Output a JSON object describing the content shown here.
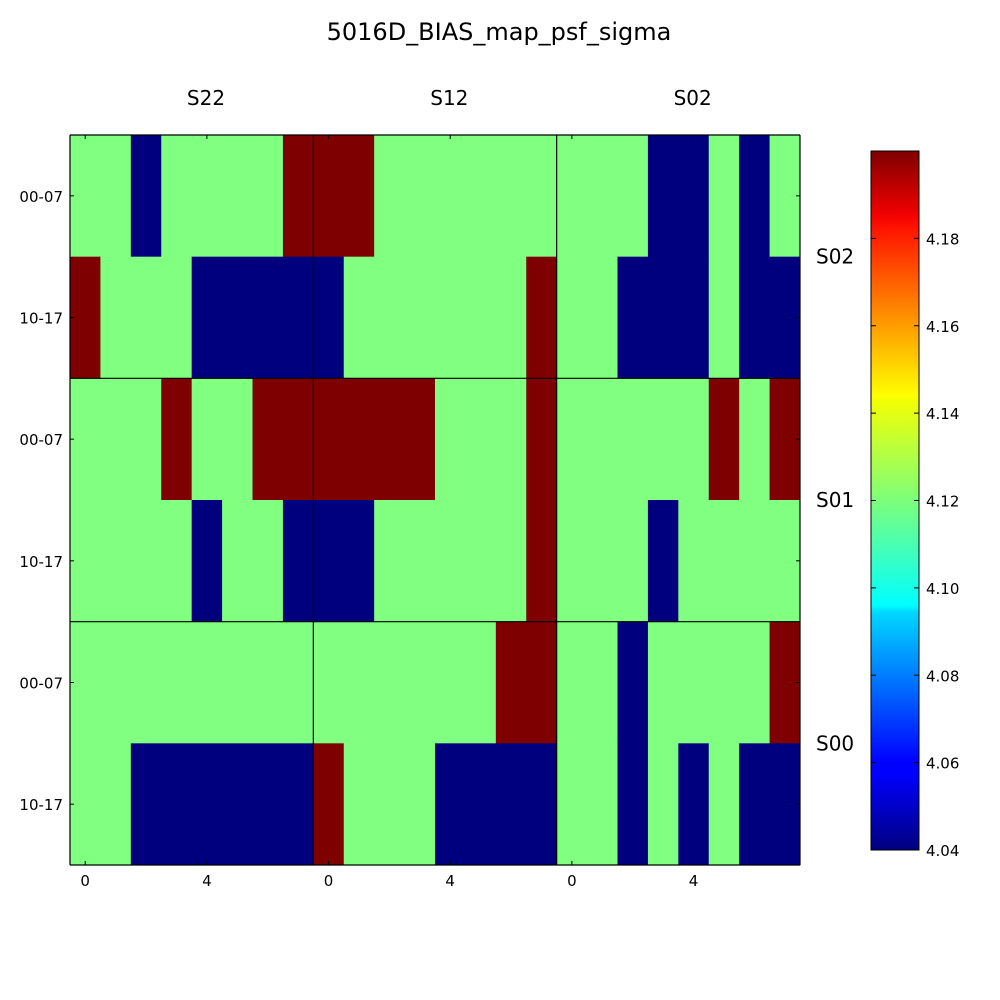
{
  "chart_data": {
    "type": "heatmap",
    "title": "5016D_BIAS_map_psf_sigma",
    "colormap": "jet",
    "value_range": [
      4.04,
      4.2
    ],
    "low_value": 4.04,
    "mid_value": 4.12,
    "high_value": 4.2,
    "colorbar_ticks": [
      "4.04",
      "4.06",
      "4.08",
      "4.10",
      "4.12",
      "4.14",
      "4.16",
      "4.18"
    ],
    "column_labels": [
      "S22",
      "S12",
      "S02"
    ],
    "row_labels": [
      "S02",
      "S01",
      "S00"
    ],
    "y_tick_labels": [
      "00-07",
      "10-17"
    ],
    "x_tick_labels": [
      "0",
      "4"
    ],
    "panels": [
      {
        "row": "S02",
        "column": "S22",
        "values": [
          [
            4.12,
            4.12,
            4.04,
            4.12,
            4.12,
            4.12,
            4.12,
            4.2
          ],
          [
            4.2,
            4.12,
            4.12,
            4.12,
            4.04,
            4.04,
            4.04,
            4.04
          ]
        ]
      },
      {
        "row": "S02",
        "column": "S12",
        "values": [
          [
            4.2,
            4.2,
            4.12,
            4.12,
            4.12,
            4.12,
            4.12,
            4.12
          ],
          [
            4.04,
            4.12,
            4.12,
            4.12,
            4.12,
            4.12,
            4.12,
            4.2
          ]
        ]
      },
      {
        "row": "S02",
        "column": "S02",
        "values": [
          [
            4.12,
            4.12,
            4.12,
            4.04,
            4.04,
            4.12,
            4.04,
            4.12
          ],
          [
            4.12,
            4.12,
            4.04,
            4.04,
            4.04,
            4.12,
            4.04,
            4.04
          ]
        ]
      },
      {
        "row": "S01",
        "column": "S22",
        "values": [
          [
            4.12,
            4.12,
            4.12,
            4.2,
            4.12,
            4.12,
            4.2,
            4.2
          ],
          [
            4.12,
            4.12,
            4.12,
            4.12,
            4.04,
            4.12,
            4.12,
            4.04
          ]
        ]
      },
      {
        "row": "S01",
        "column": "S12",
        "values": [
          [
            4.2,
            4.2,
            4.2,
            4.2,
            4.12,
            4.12,
            4.12,
            4.2
          ],
          [
            4.04,
            4.04,
            4.12,
            4.12,
            4.12,
            4.12,
            4.12,
            4.2
          ]
        ]
      },
      {
        "row": "S01",
        "column": "S02",
        "values": [
          [
            4.12,
            4.12,
            4.12,
            4.12,
            4.12,
            4.2,
            4.12,
            4.2
          ],
          [
            4.12,
            4.12,
            4.12,
            4.04,
            4.12,
            4.12,
            4.12,
            4.12
          ]
        ]
      },
      {
        "row": "S00",
        "column": "S22",
        "values": [
          [
            4.12,
            4.12,
            4.12,
            4.12,
            4.12,
            4.12,
            4.12,
            4.12
          ],
          [
            4.12,
            4.12,
            4.04,
            4.04,
            4.04,
            4.04,
            4.04,
            4.04
          ]
        ]
      },
      {
        "row": "S00",
        "column": "S12",
        "values": [
          [
            4.12,
            4.12,
            4.12,
            4.12,
            4.12,
            4.12,
            4.2,
            4.2
          ],
          [
            4.2,
            4.12,
            4.12,
            4.12,
            4.04,
            4.04,
            4.04,
            4.04
          ]
        ]
      },
      {
        "row": "S00",
        "column": "S02",
        "values": [
          [
            4.12,
            4.12,
            4.04,
            4.12,
            4.12,
            4.12,
            4.12,
            4.2
          ],
          [
            4.12,
            4.12,
            4.04,
            4.12,
            4.04,
            4.12,
            4.04,
            4.04
          ]
        ]
      }
    ]
  }
}
